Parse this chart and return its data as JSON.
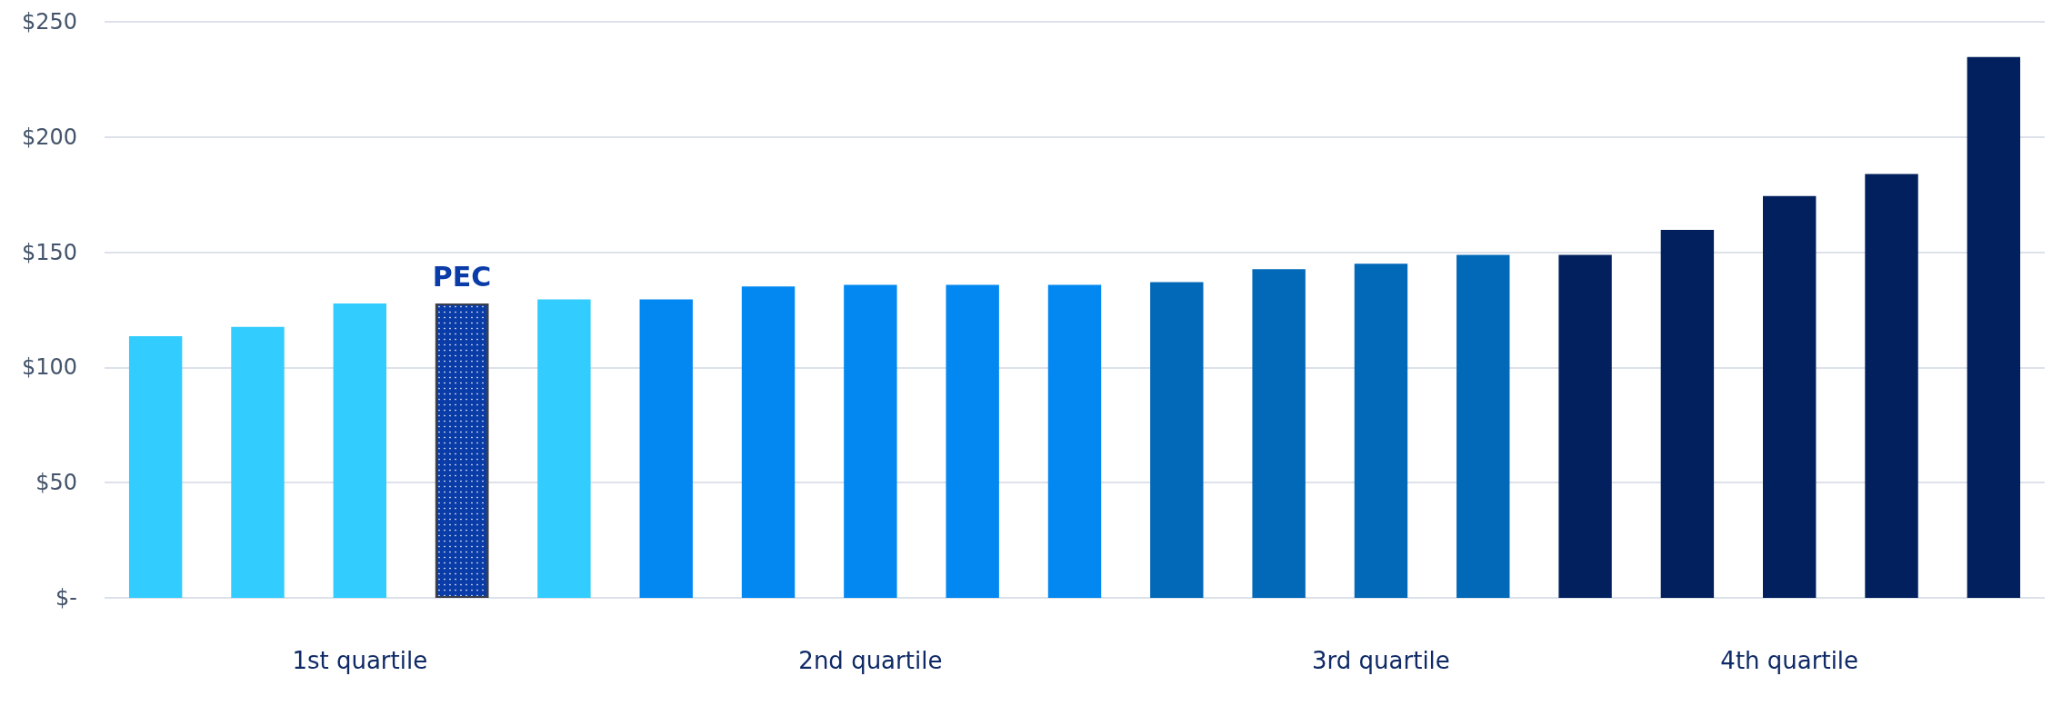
{
  "chart_data": {
    "type": "bar",
    "categories": [
      null,
      null,
      "1st quartile",
      null,
      null,
      null,
      null,
      "2nd quartile",
      null,
      null,
      null,
      null,
      "3rd quartile",
      null,
      null,
      null,
      "4th quartile",
      null,
      null
    ],
    "series": [
      {
        "colors": [
          "#33ccff",
          "#33ccff",
          "#33ccff",
          null,
          "#33ccff",
          "#0288f0",
          "#0288f0",
          "#0288f0",
          "#0288f0",
          "#0288f0",
          "#0268b8",
          "#0268b8",
          "#0268b8",
          "#0268b8",
          "#02205e",
          "#02205e",
          "#02205e",
          "#02205e",
          "#02205e"
        ],
        "values": [
          113.6,
          117.6,
          127.8,
          null,
          129.5,
          129.5,
          135.2,
          135.8,
          135.8,
          135.8,
          137,
          142.6,
          145,
          148.9,
          148.9,
          159.7,
          174.4,
          184,
          234.7
        ]
      },
      {
        "name": "PEC",
        "color": "#0a3ca8",
        "values": [
          null,
          null,
          null,
          127.8,
          null,
          null,
          null,
          null,
          null,
          null,
          null,
          null,
          null,
          null,
          null,
          null,
          null,
          null,
          null
        ]
      }
    ],
    "ylim": [
      0,
      250
    ],
    "yticks": [
      {
        "value": 0,
        "label": "$-"
      },
      {
        "value": 50,
        "label": "$50"
      },
      {
        "value": 100,
        "label": "$100"
      },
      {
        "value": 150,
        "label": "$150"
      },
      {
        "value": 200,
        "label": "$200"
      },
      {
        "value": 250,
        "label": "$250"
      }
    ],
    "grid": "y"
  }
}
